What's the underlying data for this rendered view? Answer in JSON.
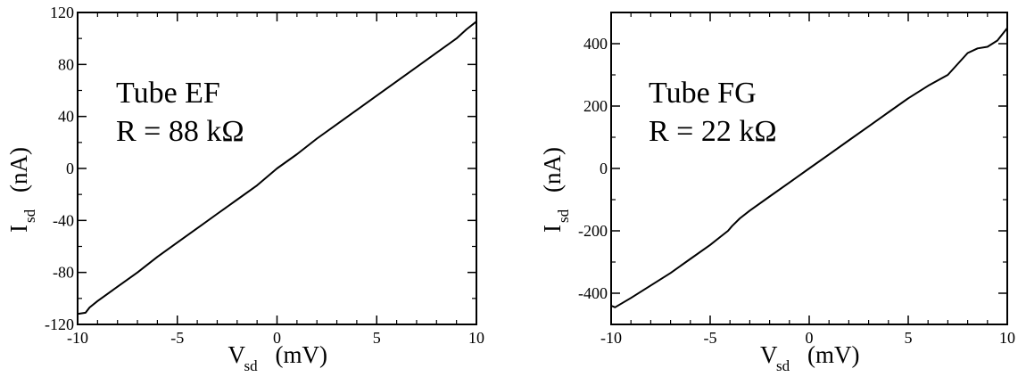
{
  "chart_data": [
    {
      "type": "line",
      "xlabel": {
        "main": "V",
        "sub": "sd",
        "unit": "(mV)"
      },
      "ylabel": {
        "main": "I",
        "sub": "sd",
        "unit": "(nA)"
      },
      "xlim": [
        -10,
        10
      ],
      "ylim": [
        -120,
        120
      ],
      "xticks": [
        "-10",
        "-5",
        "0",
        "5",
        "10"
      ],
      "yticks": [
        "-120",
        "-80",
        "-40",
        "0",
        "40",
        "80",
        "120"
      ],
      "grid": false,
      "annotations": [
        "Tube EF",
        "R = 88 kΩ"
      ],
      "series": [
        {
          "x": [
            -10,
            -9.6,
            -9.4,
            -9,
            -8,
            -7,
            -6,
            -5,
            -4,
            -3,
            -2,
            -1,
            0,
            1,
            2,
            3,
            4,
            5,
            6,
            7,
            8,
            9,
            9.5,
            10
          ],
          "y": [
            -112,
            -111,
            -107,
            -102,
            -91,
            -80,
            -68,
            -57,
            -46,
            -35,
            -24,
            -13,
            0,
            11,
            23,
            34,
            45,
            56,
            67,
            78,
            89,
            100,
            107,
            113
          ]
        }
      ]
    },
    {
      "type": "line",
      "xlabel": {
        "main": "V",
        "sub": "sd",
        "unit": "(mV)"
      },
      "ylabel": {
        "main": "I",
        "sub": "sd",
        "unit": "(nA)"
      },
      "xlim": [
        -10,
        10
      ],
      "ylim": [
        -500,
        500
      ],
      "xticks": [
        "-10",
        "-5",
        "0",
        "5",
        "10"
      ],
      "yticks": [
        "-400",
        "-200",
        "0",
        "200",
        "400"
      ],
      "grid": false,
      "annotations": [
        "Tube FG",
        "R = 22 kΩ"
      ],
      "series": [
        {
          "x": [
            -10,
            -9.8,
            -9,
            -8,
            -7,
            -6,
            -5,
            -4.5,
            -4.1,
            -3.9,
            -3.5,
            -3,
            -2,
            -1,
            0,
            1,
            2,
            3,
            4,
            5,
            6,
            7,
            8,
            8.5,
            9,
            9.5,
            10
          ],
          "y": [
            -440,
            -445,
            -415,
            -375,
            -335,
            -290,
            -245,
            -220,
            -200,
            -185,
            -160,
            -135,
            -90,
            -45,
            0,
            45,
            90,
            135,
            180,
            225,
            265,
            300,
            370,
            385,
            390,
            410,
            450
          ]
        }
      ]
    }
  ]
}
